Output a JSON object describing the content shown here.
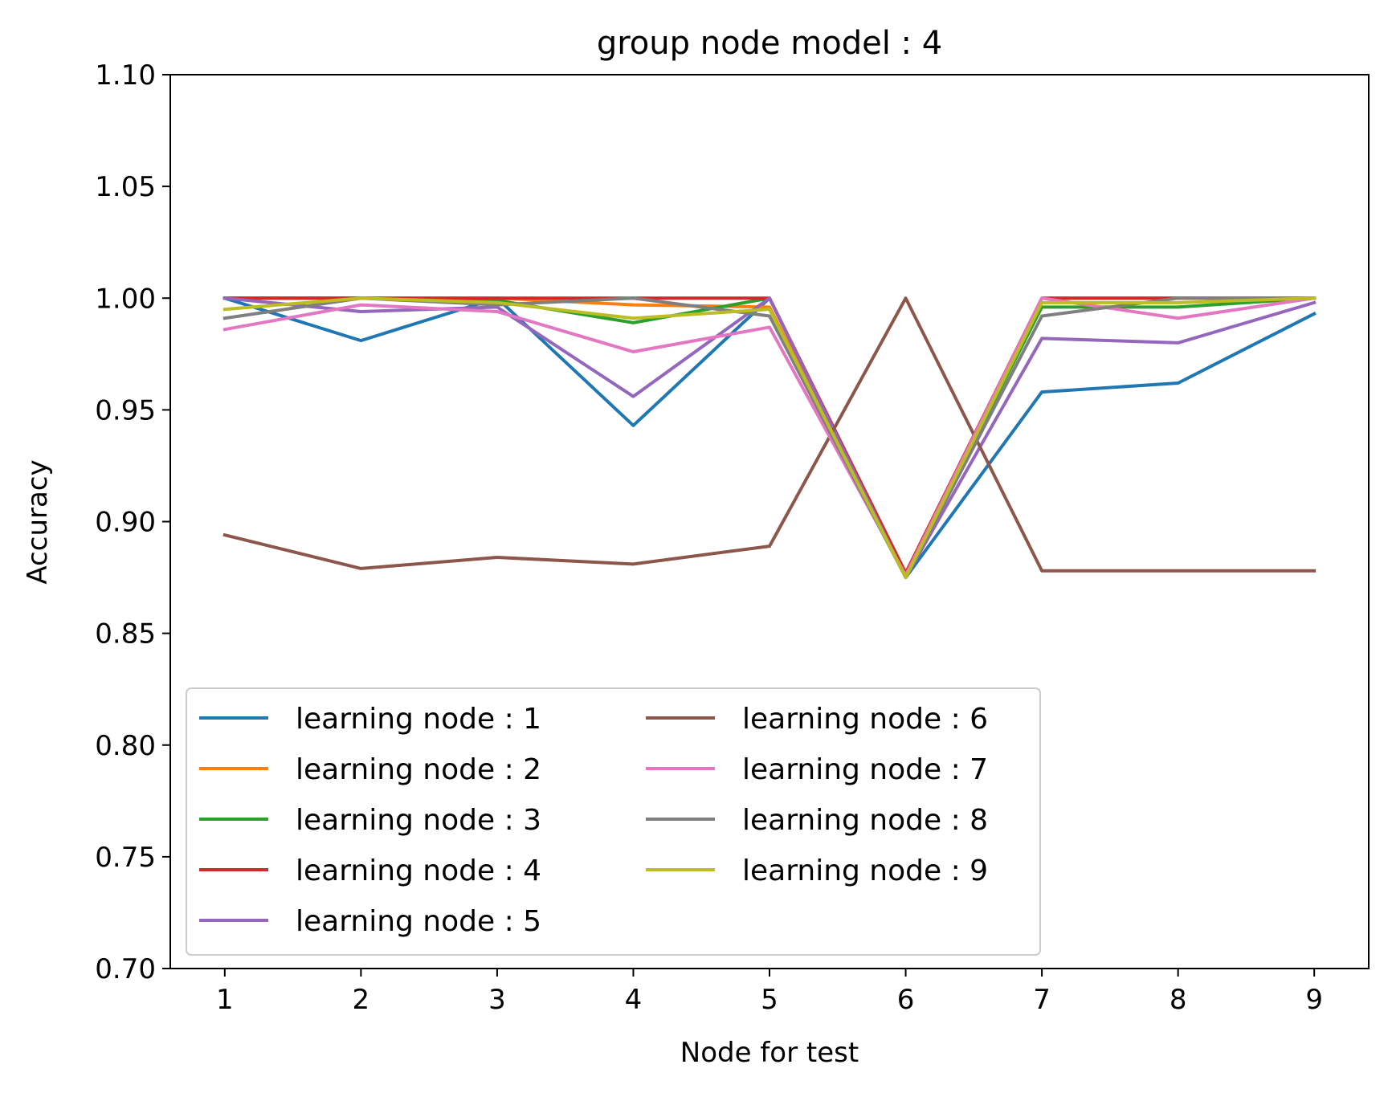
{
  "chart_data": {
    "type": "line",
    "title": "group node model : 4",
    "xlabel": "Node for test",
    "ylabel": "Accuracy",
    "x": [
      1,
      2,
      3,
      4,
      5,
      6,
      7,
      8,
      9
    ],
    "xticks": [
      "1",
      "2",
      "3",
      "4",
      "5",
      "6",
      "7",
      "8",
      "9"
    ],
    "xlim": [
      0.6,
      9.4
    ],
    "ylim": [
      0.7,
      1.1
    ],
    "yticks": [
      "0.70",
      "0.75",
      "0.80",
      "0.85",
      "0.90",
      "0.95",
      "1.00",
      "1.05",
      "1.10"
    ],
    "yticks_values": [
      0.7,
      0.75,
      0.8,
      0.85,
      0.9,
      0.95,
      1.0,
      1.05,
      1.1
    ],
    "grid": false,
    "legend_position": "lower-left",
    "legend_columns": 2,
    "series": [
      {
        "name": "learning node : 1",
        "color": "#1f77b4",
        "values": [
          1.0,
          0.981,
          1.0,
          0.943,
          1.0,
          0.875,
          0.958,
          0.962,
          0.993
        ]
      },
      {
        "name": "learning node : 2",
        "color": "#ff7f0e",
        "values": [
          1.0,
          1.0,
          1.0,
          0.997,
          0.996,
          0.876,
          1.0,
          1.0,
          1.0
        ]
      },
      {
        "name": "learning node : 3",
        "color": "#2ca02c",
        "values": [
          1.0,
          1.0,
          0.999,
          0.989,
          1.0,
          0.876,
          0.996,
          0.996,
          1.0
        ]
      },
      {
        "name": "learning node : 4",
        "color": "#d62728",
        "values": [
          1.0,
          1.0,
          1.0,
          1.0,
          1.0,
          0.877,
          1.0,
          1.0,
          1.0
        ]
      },
      {
        "name": "learning node : 5",
        "color": "#9467bd",
        "values": [
          1.0,
          0.994,
          0.996,
          0.956,
          1.0,
          0.875,
          0.982,
          0.98,
          0.998
        ]
      },
      {
        "name": "learning node : 6",
        "color": "#8c564b",
        "values": [
          0.894,
          0.879,
          0.884,
          0.881,
          0.889,
          1.0,
          0.878,
          0.878,
          0.878
        ]
      },
      {
        "name": "learning node : 7",
        "color": "#e377c2",
        "values": [
          0.986,
          0.997,
          0.994,
          0.976,
          0.987,
          0.876,
          1.0,
          0.991,
          1.0
        ]
      },
      {
        "name": "learning node : 8",
        "color": "#7f7f7f",
        "values": [
          0.991,
          1.0,
          0.997,
          1.0,
          0.992,
          0.875,
          0.992,
          1.0,
          1.0
        ]
      },
      {
        "name": "learning node : 9",
        "color": "#bcbd22",
        "values": [
          0.995,
          1.0,
          0.998,
          0.991,
          0.995,
          0.875,
          0.998,
          0.998,
          1.0
        ]
      }
    ]
  }
}
